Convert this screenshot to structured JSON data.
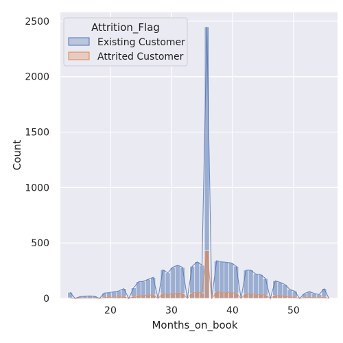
{
  "chart_data": {
    "type": "histogram",
    "xlabel": "Months_on_book",
    "ylabel": "Count",
    "xlim": [
      11.8,
      57.2
    ],
    "ylim": [
      0,
      2580
    ],
    "xticks": [
      20,
      30,
      40,
      50
    ],
    "yticks": [
      0,
      500,
      1000,
      1500,
      2000,
      2500
    ],
    "grid": true,
    "legend": {
      "title": "Attrition_Flag",
      "placement": "top-left",
      "entries": [
        "Existing Customer",
        "Attrited Customer"
      ]
    },
    "bins": {
      "start": 13,
      "width": 0.8,
      "count": 54
    },
    "series": [
      {
        "name": "Existing Customer",
        "color": "#4c72b0",
        "values": [
          55,
          0,
          16,
          20,
          22,
          20,
          0,
          48,
          52,
          60,
          68,
          88,
          0,
          95,
          150,
          155,
          172,
          190,
          0,
          258,
          230,
          280,
          300,
          280,
          0,
          290,
          330,
          300,
          2450,
          0,
          340,
          330,
          325,
          320,
          290,
          0,
          255,
          255,
          220,
          215,
          180,
          0,
          158,
          145,
          125,
          80,
          65,
          0,
          44,
          62,
          45,
          35,
          88,
          0
        ]
      },
      {
        "name": "Attrited Customer",
        "color": "#dd8452",
        "values": [
          6,
          0,
          2,
          4,
          3,
          4,
          0,
          9,
          10,
          10,
          12,
          14,
          0,
          15,
          24,
          25,
          29,
          31,
          0,
          42,
          39,
          44,
          49,
          45,
          0,
          48,
          54,
          49,
          430,
          0,
          56,
          55,
          54,
          52,
          48,
          0,
          42,
          40,
          35,
          34,
          30,
          0,
          26,
          23,
          21,
          13,
          11,
          0,
          8,
          10,
          8,
          6,
          12,
          0
        ]
      }
    ]
  }
}
